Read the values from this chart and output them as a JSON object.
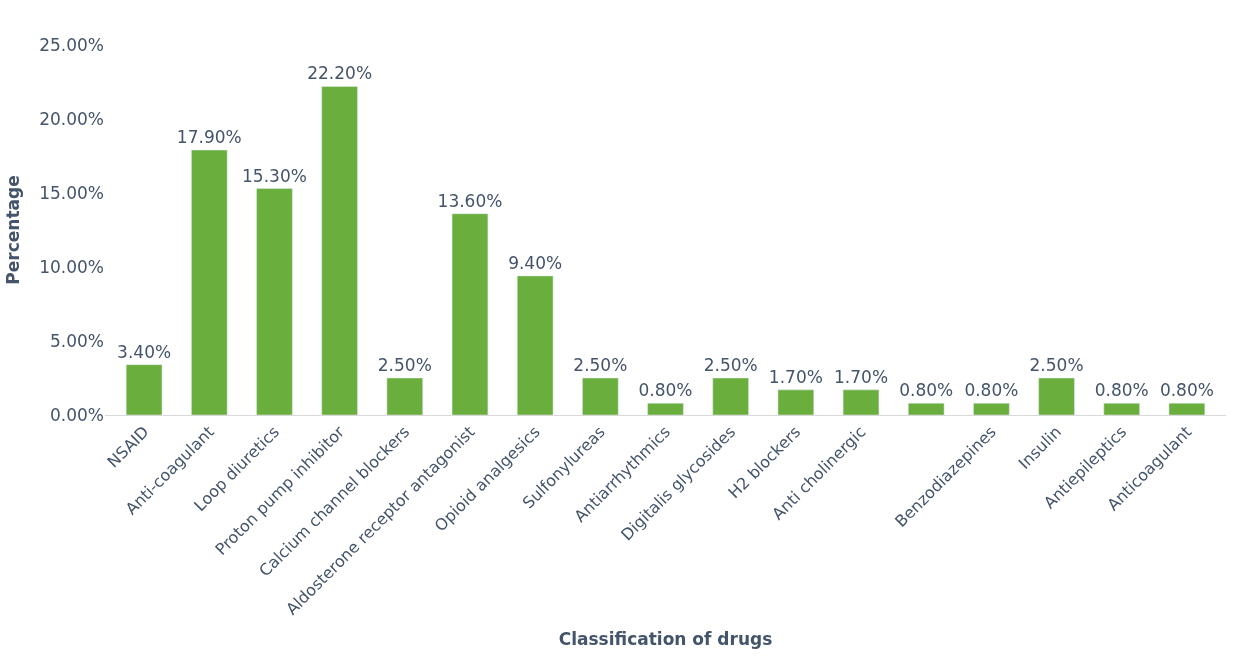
{
  "chart_data": {
    "type": "bar",
    "xlabel": "Classification of drugs",
    "ylabel": "Percentage",
    "categories": [
      "NSAID",
      "Anti-coagulant",
      "Loop diuretics",
      "Proton pump inhibitor",
      "Calcium channel blockers",
      "Aldosterone receptor antagonist",
      "Opioid analgesics",
      "Sulfonylureas",
      "Antiarrhythmics",
      "Digitalis glycosides",
      "H2 blockers",
      "Anti cholinergic",
      null,
      "Benzodiazepines",
      "Insulin",
      "Antiepileptics",
      "Anticoagulant"
    ],
    "values": [
      3.4,
      17.9,
      15.3,
      22.2,
      2.5,
      13.6,
      9.4,
      2.5,
      0.8,
      2.5,
      1.7,
      1.7,
      0.8,
      0.8,
      2.5,
      0.8,
      0.8
    ],
    "value_labels": [
      "3.40%",
      "17.90%",
      "15.30%",
      "22.20%",
      "2.50%",
      "13.60%",
      "9.40%",
      "2.50%",
      "0.80%",
      "2.50%",
      "1.70%",
      "1.70%",
      "0.80%",
      "0.80%",
      "2.50%",
      "0.80%",
      "0.80%"
    ],
    "color": "#6aaf3d",
    "ylim": [
      0,
      25
    ],
    "yticks": [
      {
        "value": 0,
        "label": "0.00%"
      },
      {
        "value": 5,
        "label": "5.00%"
      },
      {
        "value": 10,
        "label": "10.00%"
      },
      {
        "value": 15,
        "label": "15.00%"
      },
      {
        "value": 20,
        "label": "20.00%"
      },
      {
        "value": 25,
        "label": "25.00%"
      }
    ],
    "legend": false
  }
}
